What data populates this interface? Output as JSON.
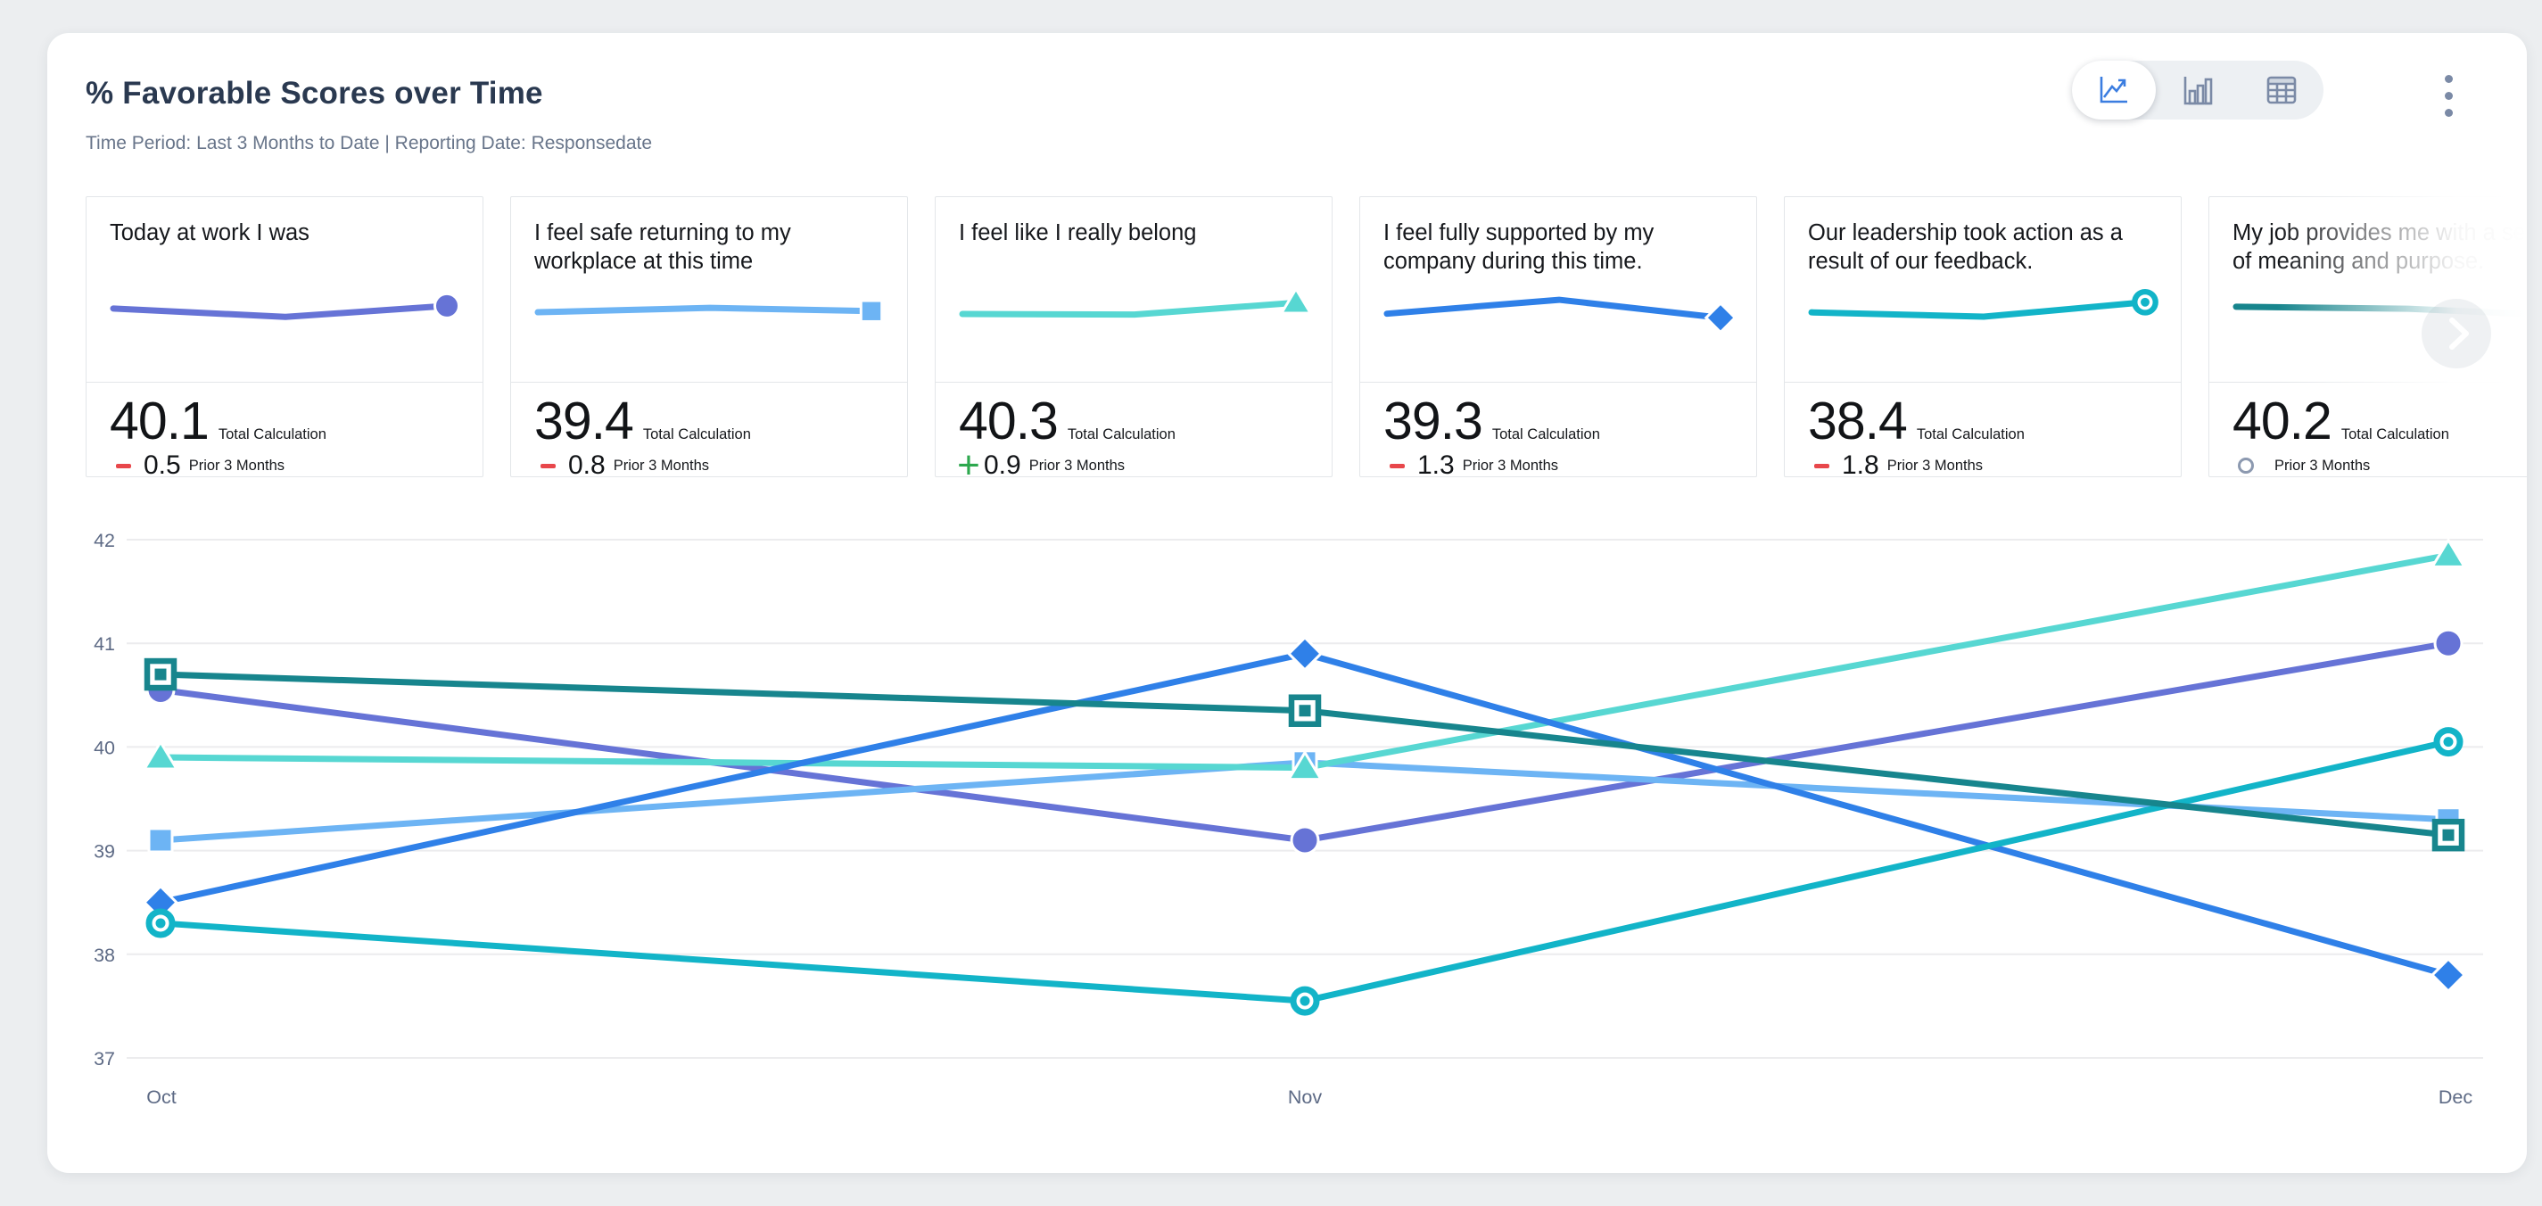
{
  "header": {
    "title": "% Favorable Scores over Time",
    "subtitle": "Time Period: Last 3 Months to Date | Reporting Date: Responsedate"
  },
  "toolbar": {
    "views": [
      {
        "name": "line-chart-view",
        "active": true
      },
      {
        "name": "bar-chart-view",
        "active": false
      },
      {
        "name": "table-view",
        "active": false
      }
    ],
    "menu": "more-options"
  },
  "cards": [
    {
      "question": "Today at work I was",
      "value": "40.1",
      "value_label": "Total Calculation",
      "delta": "0.5",
      "delta_label": "Prior 3 Months",
      "trend": "down",
      "color": "#6673d6",
      "marker": "circle",
      "spark": [
        40.55,
        39.1,
        41.0
      ]
    },
    {
      "question": "I feel safe returning to my workplace at this time",
      "value": "39.4",
      "value_label": "Total Calculation",
      "delta": "0.8",
      "delta_label": "Prior 3 Months",
      "trend": "down",
      "color": "#6db4f4",
      "marker": "square",
      "spark": [
        39.1,
        39.85,
        39.3
      ]
    },
    {
      "question": "I feel like I really belong",
      "value": "40.3",
      "value_label": "Total Calculation",
      "delta": "0.9",
      "delta_label": "Prior 3 Months",
      "trend": "up",
      "color": "#57d7d2",
      "marker": "triangle",
      "spark": [
        39.9,
        39.8,
        41.85
      ]
    },
    {
      "question": "I feel fully supported by my company during this time.",
      "value": "39.3",
      "value_label": "Total Calculation",
      "delta": "1.3",
      "delta_label": "Prior 3 Months",
      "trend": "down",
      "color": "#2f80e8",
      "marker": "diamond",
      "spark": [
        38.5,
        40.9,
        37.8
      ]
    },
    {
      "question": "Our leadership took action as a result of our feedback.",
      "value": "38.4",
      "value_label": "Total Calculation",
      "delta": "1.8",
      "delta_label": "Prior 3 Months",
      "trend": "down",
      "color": "#12b4c8",
      "marker": "donut",
      "spark": [
        38.3,
        37.55,
        40.05
      ]
    },
    {
      "question": "My job provides me with a sense of meaning and purpose.",
      "value": "40.2",
      "value_label": "Total Calculation",
      "delta": "",
      "delta_label": "Prior 3 Months",
      "trend": "neutral",
      "color": "#17858d",
      "marker": "square-outline",
      "spark": [
        40.7,
        40.35,
        39.15
      ]
    }
  ],
  "chart_data": {
    "type": "line",
    "categories": [
      "Oct",
      "Nov",
      "Dec"
    ],
    "ylim": [
      37,
      42
    ],
    "yticks": [
      42,
      41,
      40,
      39,
      38,
      37
    ],
    "grid": true,
    "legend": "none",
    "series": [
      {
        "name": "Today at work I was",
        "color": "#6673d6",
        "marker": "circle",
        "values": [
          40.55,
          39.1,
          41.0
        ]
      },
      {
        "name": "I feel safe returning to my workplace at this time",
        "color": "#6db4f4",
        "marker": "square",
        "values": [
          39.1,
          39.85,
          39.3
        ]
      },
      {
        "name": "I feel like I really belong",
        "color": "#57d7d2",
        "marker": "triangle",
        "values": [
          39.9,
          39.8,
          41.85
        ]
      },
      {
        "name": "I feel fully supported by my company during this time.",
        "color": "#2f80e8",
        "marker": "diamond",
        "values": [
          38.5,
          40.9,
          37.8
        ]
      },
      {
        "name": "Our leadership took action as a result of our feedback.",
        "color": "#12b4c8",
        "marker": "donut",
        "values": [
          38.3,
          37.55,
          40.05
        ]
      },
      {
        "name": "My job provides me with a sense of meaning and purpose.",
        "color": "#17858d",
        "marker": "square-outline",
        "values": [
          40.7,
          40.35,
          39.15
        ]
      }
    ]
  }
}
